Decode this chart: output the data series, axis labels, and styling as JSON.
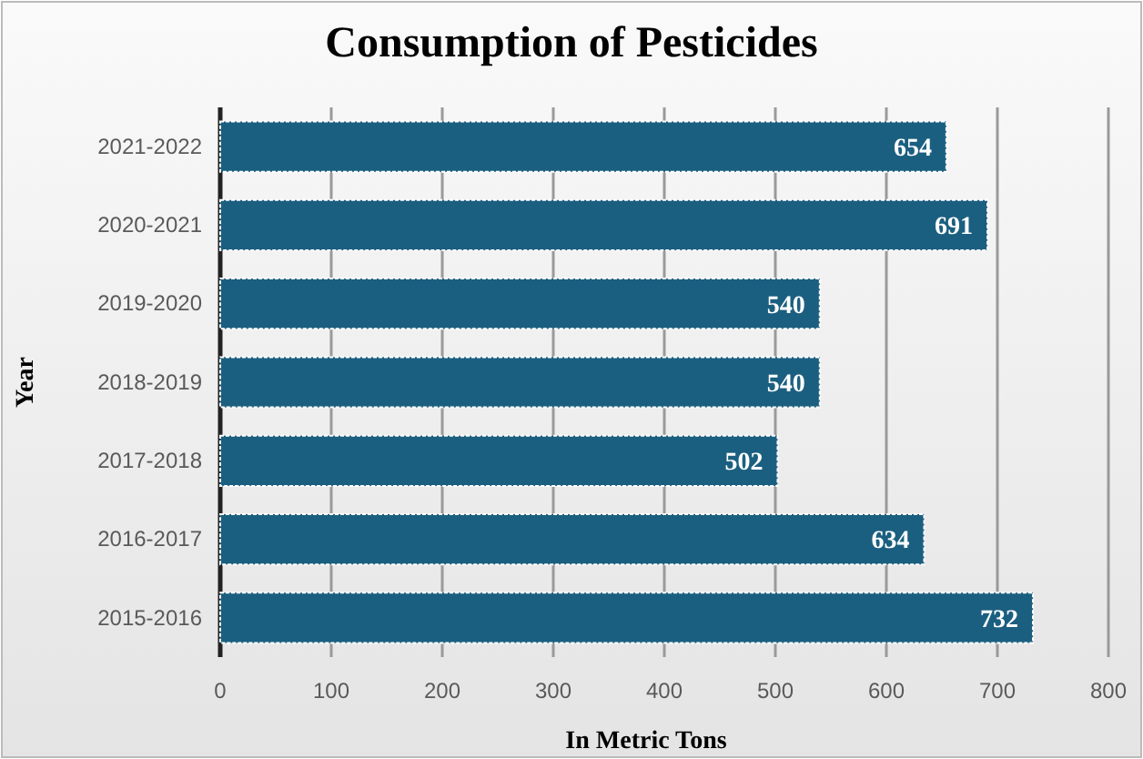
{
  "chart_data": {
    "type": "bar",
    "orientation": "horizontal",
    "title": "Consumption of Pesticides",
    "xlabel": "In Metric Tons",
    "ylabel": "Year",
    "categories": [
      "2021-2022",
      "2020-2021",
      "2019-2020",
      "2018-2019",
      "2017-2018",
      "2016-2017",
      "2015-2016"
    ],
    "values": [
      654,
      691,
      540,
      540,
      502,
      634,
      732
    ],
    "color": "#1b5f80",
    "xlim": [
      0,
      800
    ],
    "xticks": [
      0,
      100,
      200,
      300,
      400,
      500,
      600,
      700,
      800
    ],
    "grid": "x",
    "data_labels": true
  }
}
